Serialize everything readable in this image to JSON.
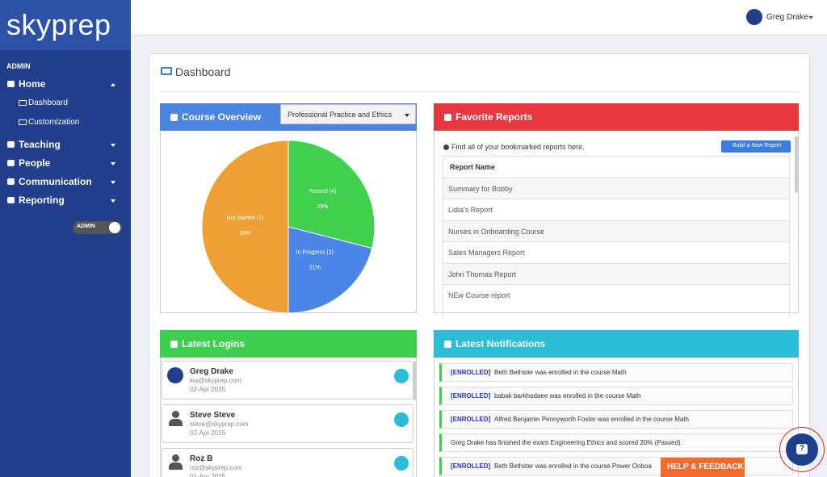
{
  "sidebar": {
    "logo": "skyprep",
    "section": "ADMIN",
    "menu": [
      {
        "label": "Home",
        "children": [
          "Dashboard",
          "Customization"
        ]
      },
      {
        "label": "Teaching"
      },
      {
        "label": "People"
      },
      {
        "label": "Communication"
      },
      {
        "label": "Reporting"
      }
    ],
    "toggle": "ADMIN"
  },
  "topbar": {
    "user": "Greg Drake"
  },
  "page": {
    "title": "Dashboard"
  },
  "course_overview": {
    "title": "Course Overview",
    "course_select": "Professional Practice and Ethics"
  },
  "chart_data": {
    "type": "pie",
    "categories": [
      "Passed (4)",
      "In Progress (3)",
      "Not Started (7)"
    ],
    "values": [
      29,
      21,
      50
    ],
    "value_labels": [
      "29%",
      "21%",
      "50%"
    ],
    "colors": [
      "#41d04d",
      "#4a86e8",
      "#eea034"
    ]
  },
  "favorite_reports": {
    "title": "Favorite Reports",
    "hint": "Find all of your bookmarked reports here.",
    "button": "Build a New Report",
    "column": "Report Name",
    "rows": [
      "Summary for Bobby",
      "Lidia's Report",
      "Nurses in Onboarding Course",
      "Sales Managers Report",
      "John Thomas Report",
      "NEw Course report"
    ]
  },
  "latest_logins": {
    "title": "Latest Logins",
    "users": [
      {
        "name": "Greg Drake",
        "email": "kia@skyprep.com",
        "date": "02-Apr 2015"
      },
      {
        "name": "Steve Steve",
        "email": "steve@skyprep.com",
        "date": "02-Apr 2015"
      },
      {
        "name": "Roz B",
        "email": "roz@skyprep.com",
        "date": "01-Apr 2015"
      }
    ]
  },
  "latest_notifications": {
    "title": "Latest Notifications",
    "items": [
      {
        "tag": "[ENROLLED]",
        "text": "Beth Bethster was enrolled in the course Math"
      },
      {
        "tag": "[ENROLLED]",
        "text": "babak barkhodaee was enrolled in the course Math"
      },
      {
        "tag": "[ENROLLED]",
        "text": "Alfred Benjamin Pennyworth Foster was enrolled in the course Math"
      },
      {
        "text": "Greg Drake has finished the exam Engineering Ethics and scored 20% (Passed)."
      },
      {
        "tag": "[ENROLLED]",
        "text": "Beth Bethster was enrolled in the course Power Onboa"
      }
    ]
  },
  "help": {
    "button": "HELP & FEEDBACK",
    "icon": "?"
  }
}
